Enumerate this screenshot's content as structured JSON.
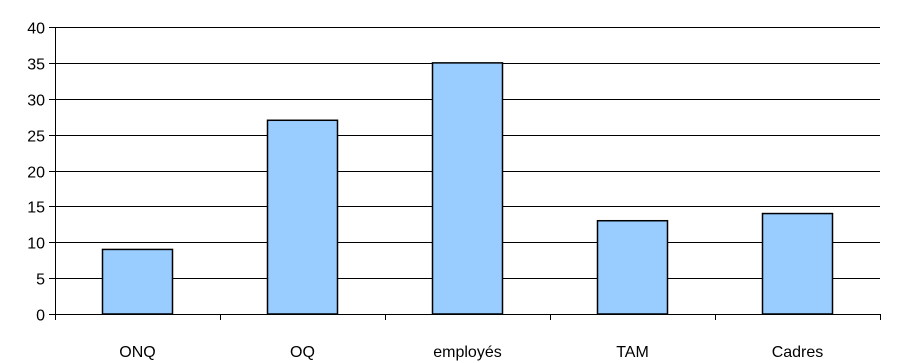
{
  "chart_data": {
    "type": "bar",
    "categories": [
      "ONQ",
      "OQ",
      "employés",
      "TAM",
      "Cadres"
    ],
    "values": [
      9,
      27,
      35,
      13,
      14
    ],
    "ylim": [
      0,
      40
    ],
    "yticks": [
      0,
      5,
      10,
      15,
      20,
      25,
      30,
      35,
      40
    ],
    "grid": true,
    "legend": "none",
    "bar_color": "#99CCFF",
    "bar_edge_color": "#000000",
    "gridline_color": "#000000",
    "background_color": "#ffffff"
  }
}
